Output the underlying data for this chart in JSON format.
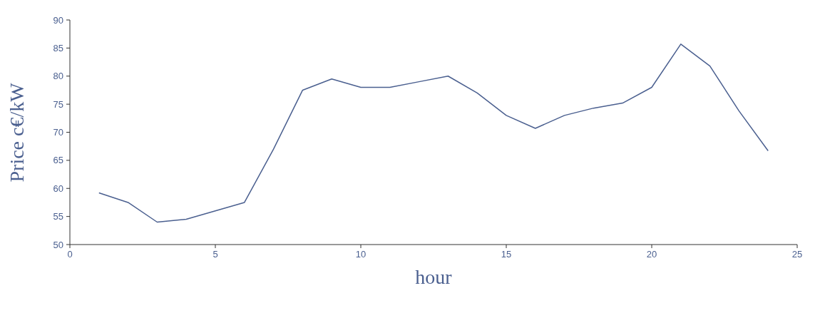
{
  "chart_data": {
    "type": "line",
    "xlabel": "hour",
    "ylabel": "Price c€/kW",
    "x": [
      1,
      2,
      3,
      4,
      5,
      6,
      7,
      8,
      9,
      10,
      11,
      12,
      13,
      14,
      15,
      16,
      17,
      18,
      19,
      20,
      21,
      22,
      23,
      24
    ],
    "series": [
      {
        "color": "#4a5f8f",
        "values": [
          59.2,
          57.5,
          54,
          54.5,
          56,
          57.5,
          67,
          77.5,
          79.5,
          78,
          78,
          79,
          80,
          77,
          73,
          70.7,
          73,
          74.3,
          75.2,
          78,
          85.7,
          81.8,
          73.8,
          66.7
        ]
      }
    ],
    "xlim": [
      0,
      25
    ],
    "xticks": [
      0,
      5,
      10,
      15,
      20,
      25
    ],
    "ylim": [
      50,
      90
    ],
    "yticks": [
      50,
      55,
      60,
      65,
      70,
      75,
      80,
      85,
      90
    ],
    "grid": false,
    "legend": false,
    "marker": "none",
    "line_style": "solid"
  }
}
